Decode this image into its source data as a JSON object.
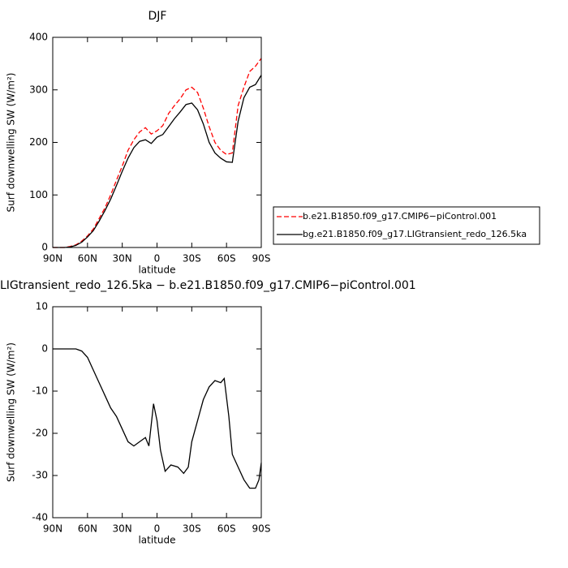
{
  "chart_data": [
    {
      "type": "line",
      "title": "DJF",
      "xlabel": "latitude",
      "ylabel": "Surf downwelling SW (W/m²)",
      "x": [
        90,
        80,
        75,
        70,
        65,
        60,
        55,
        50,
        45,
        40,
        35,
        30,
        25,
        20,
        15,
        10,
        5,
        0,
        -5,
        -10,
        -15,
        -20,
        -25,
        -30,
        -35,
        -40,
        -45,
        -50,
        -55,
        -60,
        -65,
        -70,
        -75,
        -80,
        -85,
        -90
      ],
      "xlim": [
        90,
        -90
      ],
      "xticks": [
        {
          "value": 90,
          "label": "90N"
        },
        {
          "value": 60,
          "label": "60N"
        },
        {
          "value": 30,
          "label": "30N"
        },
        0,
        {
          "value": -30,
          "label": "30S"
        },
        {
          "value": -60,
          "label": "60S"
        },
        {
          "value": -90,
          "label": "90S"
        }
      ],
      "ylim": [
        0,
        400
      ],
      "yticks": [
        0,
        100,
        200,
        300,
        400
      ],
      "series": [
        {
          "name": "b.e21.B1850.f09_g17.CMIP6−piControl.001",
          "color": "#ff0000",
          "dash": true,
          "values": [
            0,
            0,
            2,
            5,
            12,
            22,
            35,
            55,
            75,
            100,
            128,
            155,
            185,
            205,
            220,
            228,
            216,
            222,
            232,
            255,
            270,
            283,
            300,
            305,
            295,
            265,
            230,
            200,
            185,
            177,
            180,
            270,
            305,
            335,
            345,
            360
          ]
        },
        {
          "name": "bg.e21.B1850.f09_g17.LIGtransient_redo_126.5ka",
          "color": "#000000",
          "dash": false,
          "values": [
            0,
            0,
            1,
            4,
            10,
            20,
            32,
            50,
            70,
            92,
            118,
            145,
            170,
            190,
            202,
            205,
            198,
            210,
            215,
            230,
            245,
            258,
            272,
            275,
            262,
            235,
            200,
            180,
            170,
            163,
            162,
            240,
            285,
            305,
            310,
            328
          ]
        }
      ]
    },
    {
      "type": "line",
      "title": "LIGtransient_redo_126.5ka − b.e21.B1850.f09_g17.CMIP6−piControl.001",
      "xlabel": "latitude",
      "ylabel": "Surf downwelling SW (W/m²)",
      "x": [
        90,
        80,
        70,
        65,
        60,
        55,
        50,
        45,
        40,
        35,
        30,
        25,
        20,
        15,
        10,
        7,
        5,
        3,
        0,
        -3,
        -7,
        -12,
        -18,
        -23,
        -27,
        -30,
        -35,
        -40,
        -45,
        -50,
        -55,
        -58,
        -62,
        -65,
        -70,
        -75,
        -80,
        -85,
        -88,
        -90
      ],
      "xlim": [
        90,
        -90
      ],
      "xticks": [
        {
          "value": 90,
          "label": "90N"
        },
        {
          "value": 60,
          "label": "60N"
        },
        {
          "value": 30,
          "label": "30N"
        },
        0,
        {
          "value": -30,
          "label": "30S"
        },
        {
          "value": -60,
          "label": "60S"
        },
        {
          "value": -90,
          "label": "90S"
        }
      ],
      "ylim": [
        -40,
        10
      ],
      "yticks": [
        -40,
        -30,
        -20,
        -10,
        0,
        10
      ],
      "series": [
        {
          "color": "#000000",
          "dash": false,
          "values": [
            0,
            0,
            0,
            -0.5,
            -2,
            -5,
            -8,
            -11,
            -14,
            -16,
            -19,
            -22,
            -23,
            -22,
            -21,
            -23,
            -18,
            -13,
            -17,
            -24,
            -29,
            -27.5,
            -28,
            -29.5,
            -28,
            -22,
            -17,
            -12,
            -9,
            -7.5,
            -8,
            -7,
            -16,
            -25,
            -28,
            -31,
            -33,
            -33,
            -31,
            -27
          ]
        }
      ]
    }
  ]
}
